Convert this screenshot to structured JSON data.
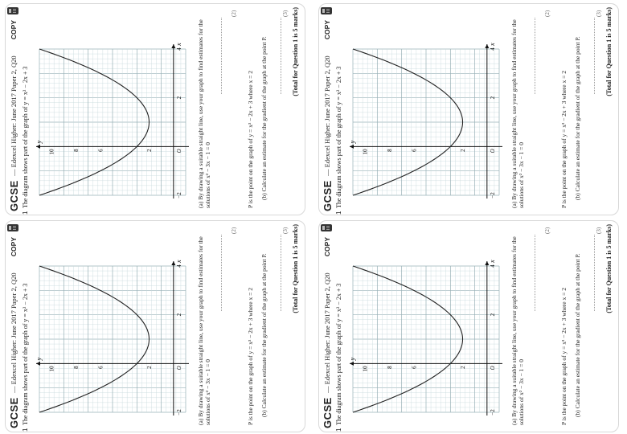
{
  "header": {
    "gcse": "GCSE",
    "title": "— Edexcel Higher: June 2017 Paper 2, Q20",
    "copy": "COPY"
  },
  "question": {
    "number": "1",
    "intro": "The diagram shows part of the graph of  y = x² − 2x + 3",
    "part_a": "(a)  By drawing a suitable straight line, use your graph to find estimates for the solutions of   x² − 3x − 1 = 0",
    "part_a_marks": "(2)",
    "part_b": "P is the point on the graph of y = x² − 2x + 3 where x = 2",
    "part_c": "(b)  Calculate an estimate for the gradient of the graph at the point P.",
    "part_c_marks": "(3)",
    "total": "(Total for Question 1 is 5 marks)"
  },
  "chart_data": {
    "type": "line",
    "title": "",
    "xlabel": "x",
    "ylabel": "y",
    "xlim": [
      -2,
      4
    ],
    "ylim": [
      -1,
      11
    ],
    "x_ticks": [
      -2,
      2,
      4
    ],
    "y_ticks": [
      2,
      6,
      8,
      10
    ],
    "origin_label": "O",
    "grid": true,
    "series": [
      {
        "x": [
          -2,
          -1.5,
          -1,
          -0.5,
          0,
          0.5,
          1,
          1.5,
          2,
          2.5,
          3,
          3.5,
          4
        ],
        "y": [
          11,
          8.25,
          6,
          4.25,
          3,
          2.25,
          2,
          2.25,
          3,
          4.25,
          6,
          8.25,
          11
        ]
      }
    ]
  },
  "colors": {
    "grid_minor": "#c7d8dc",
    "grid_major": "#97b0b6",
    "curve": "#222222",
    "axis": "#111111"
  }
}
